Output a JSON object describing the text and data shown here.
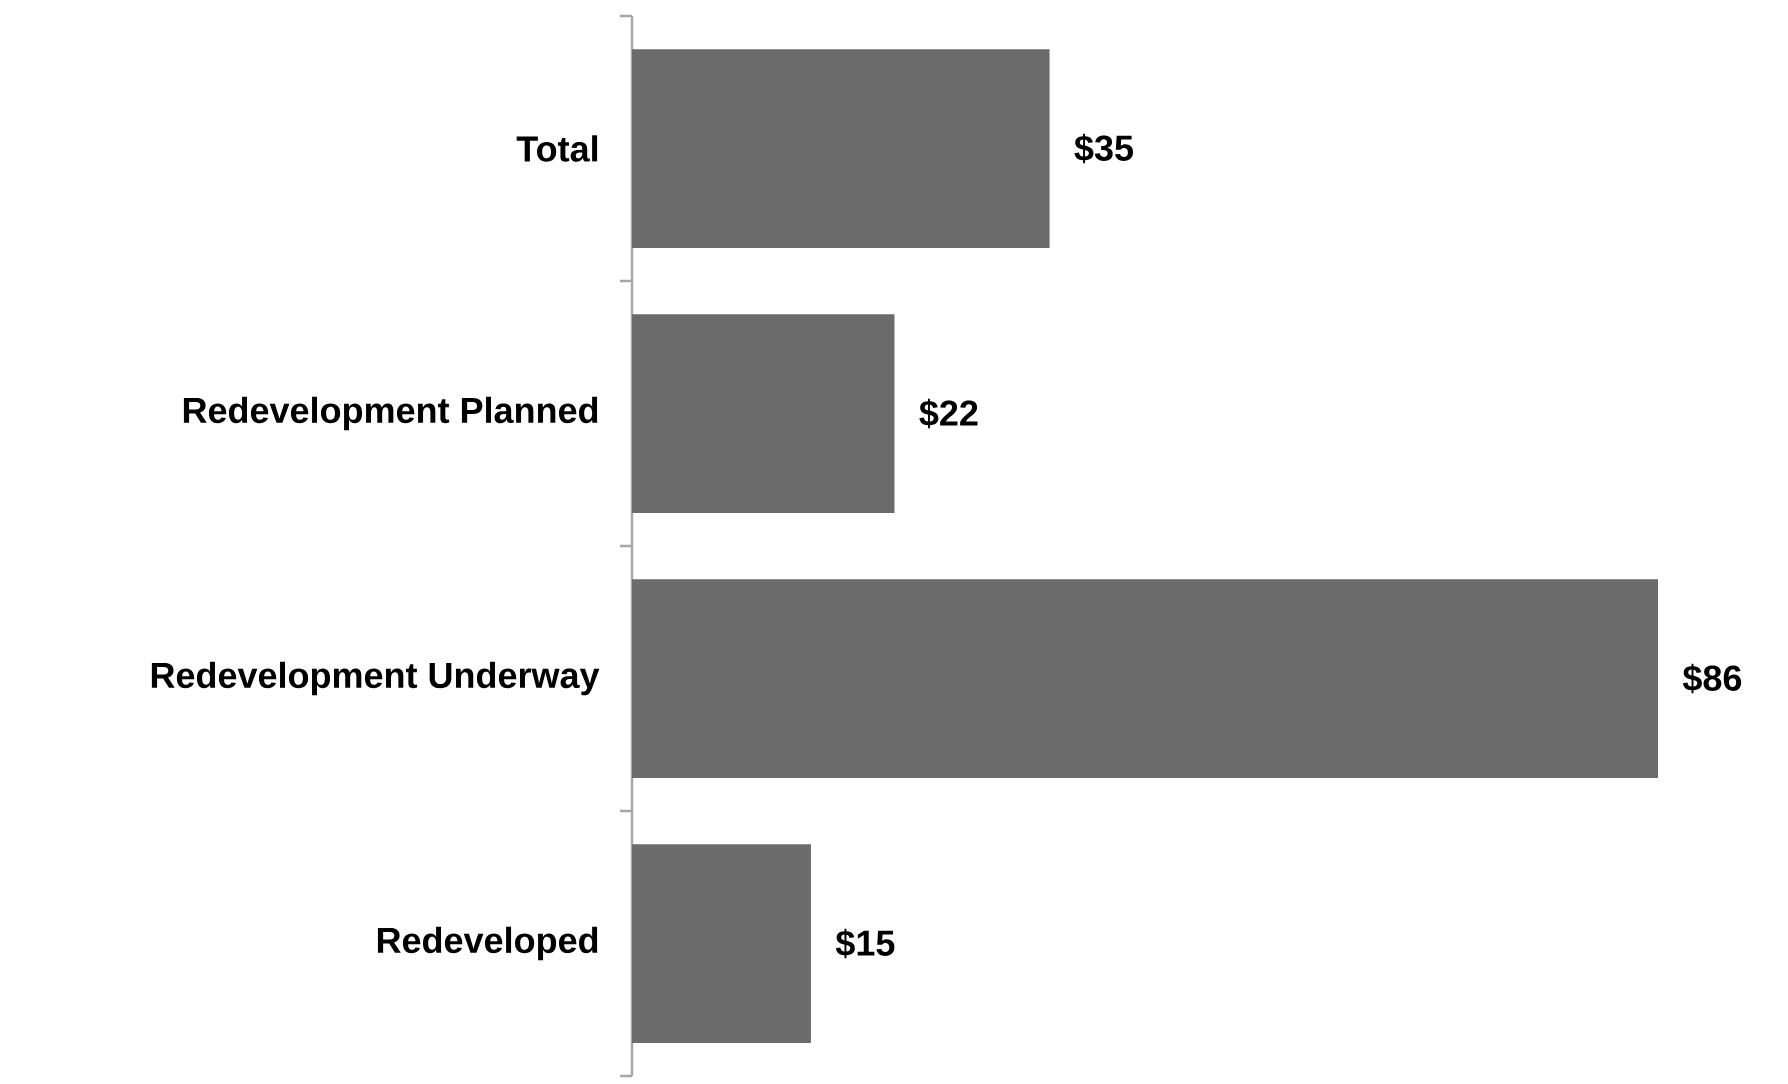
{
  "chart_data": {
    "type": "bar",
    "orientation": "horizontal",
    "color": "#6b6b6b",
    "categories": [
      "Total",
      "Redevelopment Planned",
      "Redevelopment Underway",
      "Redeveloped"
    ],
    "values": [
      35,
      22,
      86,
      15
    ],
    "value_labels": [
      "$35",
      "$22",
      "$86",
      "$15"
    ],
    "tick_labels": "y"
  }
}
